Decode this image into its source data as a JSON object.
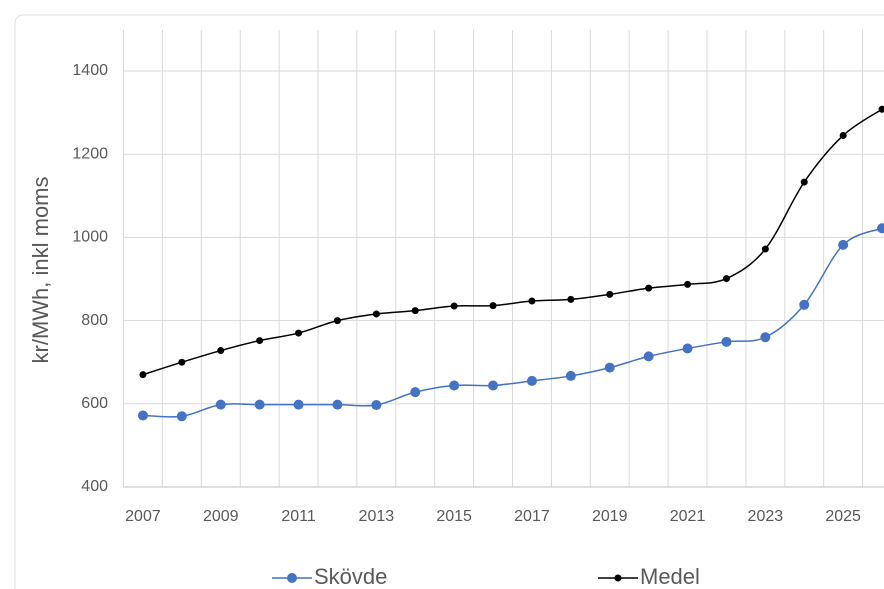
{
  "chart_data": {
    "type": "line",
    "y_label": "kr/MWh, inkl moms",
    "categories": [
      "2007",
      null,
      "2009",
      null,
      "2011",
      null,
      "2013",
      null,
      "2015",
      null,
      "2017",
      null,
      "2019",
      null,
      "2021",
      null,
      "2023",
      null,
      "2025",
      null
    ],
    "series": [
      {
        "name": "Skövde",
        "color": "#4472c4",
        "values": [
          572,
          570,
          598,
          598,
          598,
          598,
          597,
          628,
          644,
          644,
          655,
          667,
          687,
          714,
          733,
          749,
          760,
          838,
          982,
          1022
        ]
      },
      {
        "name": "Medel",
        "color": "#000000",
        "values": [
          670,
          700,
          728,
          752,
          770,
          800,
          816,
          824,
          835,
          836,
          847,
          851,
          863,
          878,
          887,
          901,
          972,
          1133,
          1245,
          1308
        ]
      }
    ],
    "ylim": [
      400,
      1400
    ],
    "yticks": [
      400,
      600,
      800,
      1000,
      1200,
      1400
    ],
    "grid": true,
    "legend": "bottom"
  }
}
